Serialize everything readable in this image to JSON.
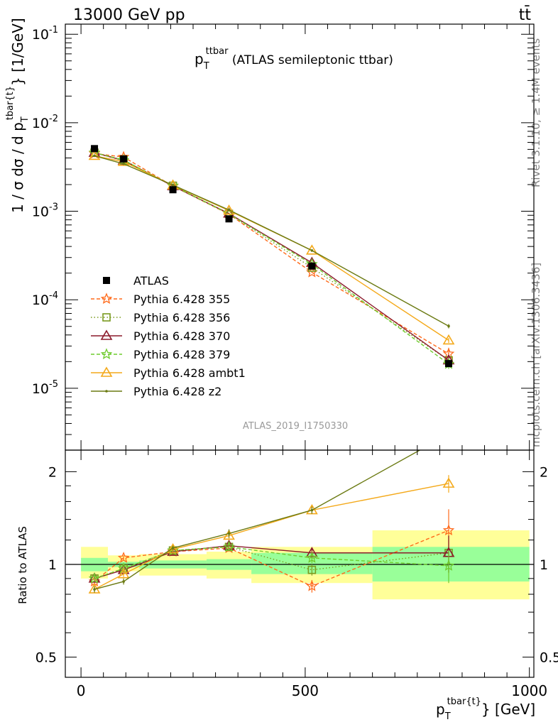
{
  "header": {
    "energy_label": "13000 GeV pp",
    "process_label": "tt̄",
    "title_main": "p",
    "title_sub": "T",
    "title_sup": "ttbar",
    "title_rest": " (ATLAS semileptonic ttbar)",
    "analysis_id": "ATLAS_2019_I1750330"
  },
  "side_labels": {
    "rivet": "Rivet 3.1.10, ≥ 1.4M events",
    "mcplots": "mcplots.cern.ch [arXiv:1306.3436]"
  },
  "axes": {
    "top_ylabel": "1 / σ dσ / d p",
    "top_ylabel_sub": "T",
    "top_ylabel_sup": "tbar{t}",
    "top_ylabel_unit": "} [1/GeV]",
    "bottom_ylabel": "Ratio to ATLAS",
    "xlabel_main": "p",
    "xlabel_sub": "T",
    "xlabel_sup": "tbar{t}",
    "xlabel_unit": "} [GeV]",
    "x_ticks": [
      "0",
      "500",
      "1000"
    ],
    "top_y_ticks": [
      "10^-5",
      "10^-4",
      "10^-3",
      "10^-2",
      "10^-1"
    ],
    "ratio_ticks": [
      "0.5",
      "1",
      "2"
    ]
  },
  "chart_data": {
    "type": "line",
    "x_range": [
      -35,
      1010
    ],
    "y_log": true,
    "y_range": [
      2e-06,
      0.13
    ],
    "ratio_range": [
      0.43,
      2.35
    ],
    "x": [
      30,
      95,
      205,
      330,
      515,
      820
    ],
    "bins": [
      [
        0,
        60
      ],
      [
        60,
        130
      ],
      [
        130,
        280
      ],
      [
        280,
        380
      ],
      [
        380,
        650
      ],
      [
        650,
        1000
      ]
    ],
    "data_series": {
      "name": "ATLAS",
      "values": [
        0.0051,
        0.0039,
        0.00175,
        0.00082,
        0.00024,
        1.9e-05
      ]
    },
    "bands": {
      "inner": [
        [
          0.95,
          1.05
        ],
        [
          0.98,
          1.02
        ],
        [
          0.97,
          1.03
        ],
        [
          0.96,
          1.04
        ],
        [
          0.93,
          1.09
        ],
        [
          0.88,
          1.14
        ]
      ],
      "outer": [
        [
          0.9,
          1.14
        ],
        [
          0.95,
          1.07
        ],
        [
          0.92,
          1.08
        ],
        [
          0.9,
          1.1
        ],
        [
          0.87,
          1.14
        ],
        [
          0.77,
          1.29
        ]
      ]
    },
    "series": [
      {
        "name": "Pythia 6.428 355",
        "color": "#ff6a1a",
        "dash": "5,3",
        "marker": "star",
        "ratio": [
          0.88,
          1.05,
          1.1,
          1.13,
          0.85,
          1.29
        ],
        "err": [
          0.02,
          0.02,
          0.02,
          0.03,
          0.04,
          0.22
        ]
      },
      {
        "name": "Pythia 6.428 356",
        "color": "#7a9a1f",
        "dash": "1.5,3",
        "marker": "square",
        "ratio": [
          0.9,
          0.97,
          1.11,
          1.14,
          0.96,
          1.09
        ],
        "err": [
          0.02,
          0.02,
          0.02,
          0.03,
          0.04,
          0.15
        ]
      },
      {
        "name": "Pythia 6.428 370",
        "color": "#8b1a2b",
        "dash": "",
        "marker": "triangle",
        "ratio": [
          0.9,
          0.96,
          1.1,
          1.15,
          1.09,
          1.09
        ],
        "err": [
          0.02,
          0.02,
          0.02,
          0.03,
          0.04,
          0.15
        ]
      },
      {
        "name": "Pythia 6.428 379",
        "color": "#6fcb2e",
        "dash": "5,3",
        "marker": "star",
        "ratio": [
          0.9,
          0.97,
          1.11,
          1.14,
          1.05,
          0.99
        ],
        "err": [
          0.02,
          0.02,
          0.02,
          0.03,
          0.04,
          0.12
        ]
      },
      {
        "name": "Pythia 6.428 ambt1",
        "color": "#f4a91a",
        "dash": "",
        "marker": "triangle",
        "ratio": [
          0.83,
          0.93,
          1.12,
          1.24,
          1.5,
          1.83
        ],
        "err": [
          0.02,
          0.02,
          0.02,
          0.04,
          0.04,
          0.12
        ]
      },
      {
        "name": "Pythia 6.428 z2",
        "color": "#6b7a12",
        "dash": "",
        "marker": "dot",
        "ratio": [
          0.83,
          0.88,
          1.13,
          1.26,
          1.5,
          2.65
        ],
        "err": [
          0.02,
          0.02,
          0.02,
          0.04,
          0.04,
          0.15
        ]
      }
    ]
  }
}
